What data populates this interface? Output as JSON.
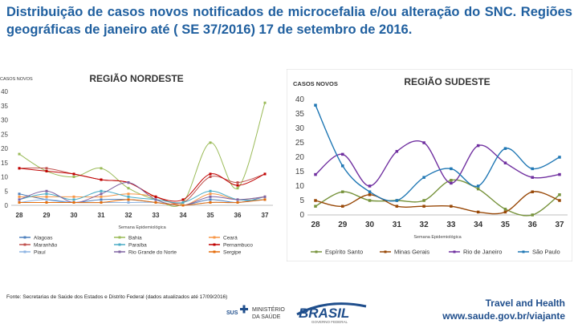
{
  "title": "Distribuição de casos novos notificados de microcefalia e/ou alteração do SNC. Regiões geográficas de janeiro até ( SE 37/2016) 17 de setembro de 2016.",
  "footnote": "Fonte: Secretarias de Saúde dos Estados e Distrito Federal (dados atualizados até 17/09/2016)",
  "logos": {
    "sus": "SUS",
    "ministerio_line1": "MINISTÉRIO",
    "ministerio_line2": "DA SAÚDE",
    "brasil": "BRASIL",
    "brasil_tagline": "GOVERNO FEDERAL"
  },
  "travel": {
    "line1": "Travel and Health",
    "line2": "www.saude.gov.br/viajante"
  },
  "chart_data": [
    {
      "type": "line",
      "title": "REGIÃO NORDESTE",
      "ylabel": "CASOS NOVOS",
      "xlabel": "Semana Epidemiológica",
      "categories": [
        "28",
        "29",
        "30",
        "31",
        "32",
        "33",
        "34",
        "35",
        "36",
        "37"
      ],
      "ylim": [
        0,
        40
      ],
      "yticks": [
        0,
        5,
        10,
        15,
        20,
        25,
        30,
        35,
        40
      ],
      "series": [
        {
          "name": "Alagoas",
          "color": "#4f81bd",
          "values": [
            4,
            2,
            1,
            2,
            2,
            1,
            0,
            2,
            1,
            3
          ]
        },
        {
          "name": "Bahia",
          "color": "#9bbb59",
          "values": [
            18,
            12,
            10,
            13,
            6,
            2,
            1,
            22,
            6,
            36
          ]
        },
        {
          "name": "Ceará",
          "color": "#f79646",
          "values": [
            3,
            3,
            3,
            3,
            4,
            3,
            0,
            4,
            2,
            3
          ]
        },
        {
          "name": "Maranhão",
          "color": "#c0504d",
          "values": [
            13,
            13,
            11,
            9,
            8,
            3,
            1,
            10,
            8,
            11
          ]
        },
        {
          "name": "Paraíba",
          "color": "#4bacc6",
          "values": [
            2,
            4,
            2,
            5,
            3,
            2,
            1,
            5,
            2,
            2
          ]
        },
        {
          "name": "Pernambuco",
          "color": "#c00000",
          "values": [
            13,
            12,
            11,
            9,
            8,
            3,
            2,
            11,
            7,
            11
          ]
        },
        {
          "name": "Piauí",
          "color": "#8eb4e3",
          "values": [
            1,
            2,
            1,
            1,
            1,
            1,
            0,
            1,
            1,
            2
          ]
        },
        {
          "name": "Rio Grande do Norte",
          "color": "#8064a2",
          "values": [
            2,
            5,
            1,
            4,
            8,
            2,
            0,
            3,
            2,
            3
          ]
        },
        {
          "name": "Sergipe",
          "color": "#e46c0a",
          "values": [
            1,
            1,
            1,
            1,
            2,
            1,
            0,
            1,
            1,
            2
          ]
        }
      ]
    },
    {
      "type": "line",
      "title": "REGIÃO SUDESTE",
      "ylabel": "CASOS NOVOS",
      "xlabel": "Semana Epidemiológica",
      "categories": [
        "28",
        "29",
        "30",
        "31",
        "32",
        "33",
        "34",
        "35",
        "36",
        "37"
      ],
      "ylim": [
        0,
        40
      ],
      "yticks": [
        0,
        5,
        10,
        15,
        20,
        25,
        30,
        35,
        40
      ],
      "series": [
        {
          "name": "Espírito Santo",
          "color": "#77933c",
          "values": [
            3,
            8,
            5,
            5,
            5,
            12,
            9,
            2,
            0,
            7
          ]
        },
        {
          "name": "Minas Gerais",
          "color": "#984807",
          "values": [
            5,
            3,
            7,
            3,
            3,
            3,
            1,
            1,
            8,
            5
          ]
        },
        {
          "name": "Rio de Janeiro",
          "color": "#7030a0",
          "values": [
            14,
            21,
            10,
            22,
            25,
            11,
            24,
            18,
            13,
            14
          ]
        },
        {
          "name": "São Paulo",
          "color": "#1f77b4",
          "values": [
            38,
            17,
            8,
            5,
            13,
            16,
            10,
            23,
            16,
            20
          ]
        }
      ]
    }
  ]
}
